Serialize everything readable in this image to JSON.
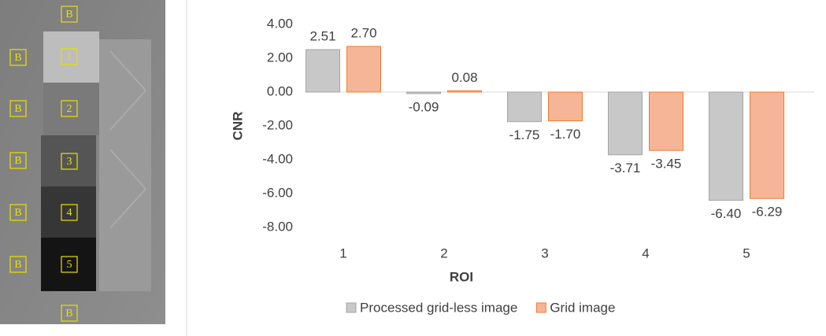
{
  "image_labels": [
    "B",
    "B",
    "1",
    "B",
    "2",
    "B",
    "3",
    "B",
    "4",
    "B",
    "5",
    "B"
  ],
  "chart_data": {
    "type": "bar",
    "x_label": "ROI",
    "y_label": "CNR",
    "categories": [
      "1",
      "2",
      "3",
      "4",
      "5"
    ],
    "series": [
      {
        "name": "Processed grid-less image",
        "color": "#c8c8c8",
        "edge": "#a5a5a5",
        "values": [
          2.51,
          -0.09,
          -1.75,
          -3.71,
          -6.4
        ],
        "value_labels": [
          "2.51",
          "-0.09",
          "-1.75",
          "-3.71",
          "-6.40"
        ]
      },
      {
        "name": "Grid image",
        "color": "#f7b597",
        "edge": "#ed7d31",
        "values": [
          2.7,
          0.08,
          -1.7,
          -3.45,
          -6.29
        ],
        "value_labels": [
          "2.70",
          "0.08",
          "-1.70",
          "-3.45",
          "-6.29"
        ]
      }
    ],
    "ylim": [
      -8,
      4
    ],
    "yticks": [
      {
        "value": 4,
        "label": "4.00"
      },
      {
        "value": 2,
        "label": "2.00"
      },
      {
        "value": 0,
        "label": "0.00"
      },
      {
        "value": -2,
        "label": "-2.00"
      },
      {
        "value": -4,
        "label": "-4.00"
      },
      {
        "value": -6,
        "label": "-6.00"
      },
      {
        "value": -8,
        "label": "-8.00"
      }
    ],
    "grid": false,
    "legend": "bottom"
  }
}
